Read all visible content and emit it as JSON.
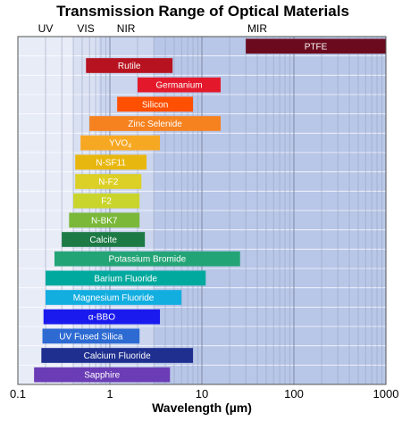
{
  "chart_data": {
    "type": "bar",
    "orientation": "horizontal",
    "title": "Transmission Range of Optical Materials",
    "xlabel": "Wavelength (µm)",
    "xscale": "log",
    "xlim": [
      0.1,
      1000
    ],
    "xticks": [
      {
        "value": 0.1,
        "label": "0.1"
      },
      {
        "value": 1,
        "label": "1"
      },
      {
        "value": 10,
        "label": "10"
      },
      {
        "value": 100,
        "label": "100"
      },
      {
        "value": 1000,
        "label": "1000"
      }
    ],
    "grid": true,
    "regions": [
      {
        "label": "UV",
        "from": 0.1,
        "to": 0.4,
        "color": "#e8ecf7"
      },
      {
        "label": "VIS",
        "from": 0.4,
        "to": 0.75,
        "color": "#d9e0f2"
      },
      {
        "label": "NIR",
        "from": 0.75,
        "to": 3,
        "color": "#cbd5ee"
      },
      {
        "label": "MIR",
        "from": 3,
        "to": 1000,
        "color": "#b8c6e7"
      }
    ],
    "series": [
      {
        "label": "PTFE",
        "min": 30,
        "max": 1000,
        "color": "#6b0a1e"
      },
      {
        "label": "Rutile",
        "min": 0.55,
        "max": 4.8,
        "color": "#b7121f"
      },
      {
        "label": "Germanium",
        "min": 2,
        "max": 16,
        "color": "#e3192b"
      },
      {
        "label": "Silicon",
        "min": 1.2,
        "max": 8,
        "color": "#ff4f00"
      },
      {
        "label": "Zinc Selenide",
        "min": 0.6,
        "max": 16,
        "color": "#f5821f"
      },
      {
        "label": "YVO",
        "sub": "4",
        "min": 0.48,
        "max": 3.5,
        "color": "#f7a823"
      },
      {
        "label": "N-SF11",
        "min": 0.42,
        "max": 2.5,
        "color": "#e8b70f"
      },
      {
        "label": "N-F2",
        "min": 0.42,
        "max": 2.2,
        "color": "#dccf25"
      },
      {
        "label": "F2",
        "min": 0.4,
        "max": 2.1,
        "color": "#c9d52d"
      },
      {
        "label": "N-BK7",
        "min": 0.36,
        "max": 2.1,
        "color": "#7bb83a"
      },
      {
        "label": "Calcite",
        "min": 0.3,
        "max": 2.4,
        "color": "#1d7a45"
      },
      {
        "label": "Potassium Bromide",
        "min": 0.25,
        "max": 26,
        "color": "#23a476"
      },
      {
        "label": "Barium Fluoride",
        "min": 0.2,
        "max": 11,
        "color": "#00a99d"
      },
      {
        "label": "Magnesium Fluoride",
        "min": 0.2,
        "max": 6,
        "color": "#13aee0"
      },
      {
        "label": "α-BBO",
        "min": 0.19,
        "max": 3.5,
        "color": "#1a1aee"
      },
      {
        "label": "UV Fused Silica",
        "min": 0.185,
        "max": 2.1,
        "color": "#2d6bd3"
      },
      {
        "label": "Calcium Fluoride",
        "min": 0.18,
        "max": 8,
        "color": "#1f2f8f"
      },
      {
        "label": "Sapphire",
        "min": 0.15,
        "max": 4.5,
        "color": "#6a3cb5"
      }
    ]
  }
}
